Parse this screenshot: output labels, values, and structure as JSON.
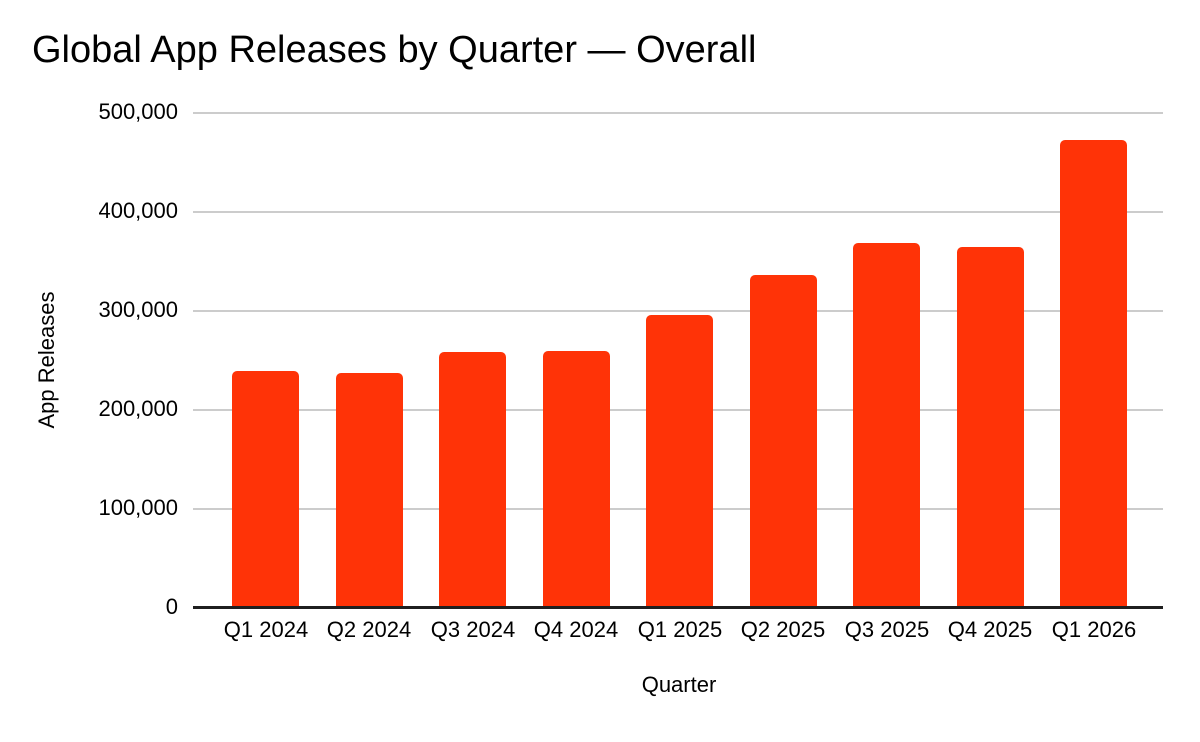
{
  "title": "Global App Releases by Quarter — Overall",
  "chart_data": {
    "type": "bar",
    "title": "Global App Releases by Quarter — Overall",
    "xlabel": "Quarter",
    "ylabel": "App Releases",
    "categories": [
      "Q1 2024",
      "Q2 2024",
      "Q3 2024",
      "Q4 2024",
      "Q1 2025",
      "Q2 2025",
      "Q3 2025",
      "Q4 2025",
      "Q1 2026"
    ],
    "values": [
      238000,
      236000,
      257000,
      258000,
      295000,
      335000,
      367000,
      363000,
      472000
    ],
    "ylim": [
      0,
      500000
    ],
    "ytick_interval": 100000,
    "ytick_labels": [
      "0",
      "100,000",
      "200,000",
      "300,000",
      "400,000",
      "500,000"
    ],
    "bar_color": "#FF3307",
    "gridline_color": "#CCCCCC",
    "axis_line_color": "#1F1F1F",
    "grid": true,
    "legend": false
  }
}
